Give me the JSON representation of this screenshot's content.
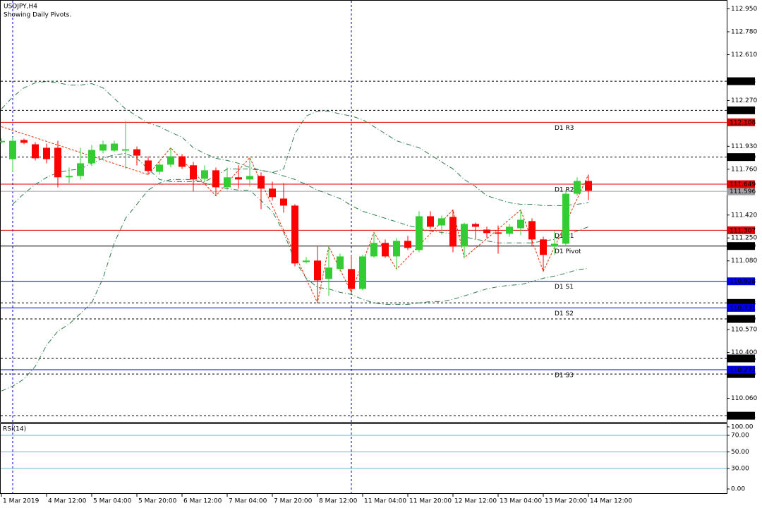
{
  "header": {
    "symbol": "USDJPY,H4",
    "note": "Showing Daily Pivots."
  },
  "chart_data": {
    "type": "candlestick",
    "categories": [
      "1 Mar 2019",
      null,
      null,
      null,
      "4 Mar 12:00",
      null,
      null,
      null,
      "5 Mar 04:00",
      null,
      null,
      null,
      "5 Mar 20:00",
      null,
      null,
      null,
      "6 Mar 12:00",
      null,
      null,
      null,
      "7 Mar 04:00",
      null,
      null,
      null,
      "7 Mar 20:00",
      null,
      null,
      null,
      "8 Mar 12:00",
      null,
      null,
      null,
      "11 Mar 04:00",
      null,
      null,
      null,
      "11 Mar 20:00",
      null,
      null,
      null,
      "12 Mar 12:00",
      null,
      null,
      null,
      "13 Mar 04:00",
      null,
      null,
      null,
      "13 Mar 20:00",
      null,
      null,
      null,
      "14 Mar 12:00"
    ],
    "open": [
      111.96,
      111.835,
      111.977,
      111.945,
      111.919,
      111.919,
      111.7,
      111.71,
      111.804,
      111.898,
      111.898,
      111.898,
      111.908,
      111.825,
      111.741,
      111.794,
      111.856,
      111.789,
      111.689,
      111.752,
      111.626,
      111.7,
      111.684,
      111.71,
      111.616,
      111.542,
      111.49,
      111.071,
      111.082,
      110.946,
      111.019,
      111.019,
      110.872,
      111.113,
      111.213,
      111.113,
      111.228,
      111.16,
      111.411,
      111.343,
      111.406,
      111.186,
      111.354,
      111.312,
      111.291,
      111.281,
      111.322,
      111.375,
      111.239,
      111.186,
      111.207,
      111.578,
      111.673
    ],
    "high": [
      111.99,
      111.998,
      111.987,
      111.961,
      111.95,
      111.971,
      111.773,
      111.919,
      111.94,
      111.971,
      111.971,
      112.118,
      111.929,
      111.856,
      111.825,
      111.919,
      111.872,
      111.814,
      111.789,
      111.773,
      111.773,
      111.789,
      111.846,
      111.736,
      111.668,
      111.657,
      111.5,
      111.108,
      111.186,
      111.186,
      111.134,
      111.124,
      111.124,
      111.291,
      111.239,
      111.249,
      111.265,
      111.448,
      111.448,
      111.416,
      111.458,
      111.364,
      111.364,
      111.333,
      111.343,
      111.354,
      111.458,
      111.396,
      111.26,
      111.301,
      111.605,
      111.7,
      111.72
    ],
    "low": [
      111.95,
      111.741,
      111.945,
      111.825,
      111.804,
      111.626,
      111.657,
      111.684,
      111.783,
      111.877,
      111.888,
      111.762,
      111.788,
      111.72,
      111.72,
      111.773,
      111.762,
      111.595,
      111.668,
      111.563,
      111.605,
      111.616,
      111.631,
      111.464,
      111.527,
      111.438,
      111.04,
      111.061,
      110.768,
      110.82,
      111.003,
      110.846,
      110.861,
      111.103,
      111.103,
      111.019,
      111.16,
      111.144,
      111.317,
      111.275,
      111.144,
      111.103,
      111.239,
      111.249,
      111.134,
      111.26,
      111.27,
      111.186,
      111.003,
      111.124,
      111.186,
      111.563,
      111.532
    ],
    "close": [
      111.97,
      111.971,
      111.956,
      111.841,
      111.835,
      111.7,
      111.71,
      111.804,
      111.903,
      111.945,
      111.95,
      111.908,
      111.861,
      111.747,
      111.794,
      111.856,
      111.778,
      111.684,
      111.752,
      111.626,
      111.7,
      111.684,
      111.71,
      111.616,
      111.553,
      111.49,
      111.061,
      111.082,
      110.935,
      111.03,
      111.113,
      110.872,
      111.113,
      111.213,
      111.113,
      111.228,
      111.176,
      111.411,
      111.333,
      111.396,
      111.186,
      111.354,
      111.333,
      111.286,
      111.281,
      111.333,
      111.385,
      111.239,
      111.124,
      111.207,
      111.578,
      111.673,
      111.6
    ],
    "up_color": "#32cd32",
    "down_color": "#ff0000",
    "ylim": [
      109.89,
      113.0
    ],
    "yticks": [
      {
        "value": 112.95,
        "label": "112.950"
      },
      {
        "value": 112.78,
        "label": "112.780"
      },
      {
        "value": 112.61,
        "label": "112.610"
      },
      {
        "value": 112.27,
        "label": "112.270"
      },
      {
        "value": 111.93,
        "label": "111.930"
      },
      {
        "value": 111.76,
        "label": "111.760"
      },
      {
        "value": 111.42,
        "label": "111.420"
      },
      {
        "value": 111.25,
        "label": "111.250"
      },
      {
        "value": 111.08,
        "label": "111.080"
      },
      {
        "value": 110.57,
        "label": "110.570"
      },
      {
        "value": 110.4,
        "label": "110.400"
      },
      {
        "value": 110.06,
        "label": "110.060"
      }
    ],
    "levels": [
      {
        "value": 112.413,
        "label": "112.413",
        "color": "#000000",
        "dashed": true
      },
      {
        "value": 112.197,
        "label": "112.197",
        "color": "#000000",
        "dashed": true
      },
      {
        "value": 111.85,
        "label": "111.850",
        "color": "#000000",
        "dashed": true
      },
      {
        "value": 110.768,
        "label": "110.768",
        "color": "#000000",
        "dashed": true
      },
      {
        "value": 110.649,
        "label": "110.649",
        "color": "#000000",
        "dashed": true
      },
      {
        "value": 110.356,
        "label": "110.356",
        "color": "#000000",
        "dashed": true
      },
      {
        "value": 110.24,
        "label": "110.240",
        "color": "#000000",
        "dashed": true
      },
      {
        "value": 109.931,
        "label": "109.931",
        "color": "#000000",
        "dashed": true
      },
      {
        "value": 111.596,
        "label": "111.596",
        "color": "#a0a0a4",
        "dashed": false
      },
      {
        "value": 112.108,
        "label": "112.108",
        "color": "#e00000",
        "dashed": false,
        "name": "D1 R3"
      },
      {
        "value": 111.649,
        "label": "111.649",
        "color": "#e00000",
        "dashed": false,
        "name": "D1 R2"
      },
      {
        "value": 111.307,
        "label": "111.307",
        "color": "#e00000",
        "dashed": false,
        "name": "D1 R1"
      },
      {
        "value": 111.19,
        "label": "111.190",
        "color": "#000000",
        "dashed": false,
        "name": "D1 Pivot"
      },
      {
        "value": 110.928,
        "label": "110.928",
        "color": "#0000e0",
        "dashed": false,
        "name": "D1 S1"
      },
      {
        "value": 110.731,
        "label": "110.731",
        "color": "#0000e0",
        "dashed": false,
        "name": "D1 S2"
      },
      {
        "value": 110.272,
        "label": "110.272",
        "color": "#0000e0",
        "dashed": false,
        "name": "D1 S3"
      }
    ],
    "bands": [
      {
        "color": "#2e7d4f",
        "values": [
          112.207,
          112.296,
          112.364,
          112.401,
          112.411,
          112.401,
          112.385,
          112.385,
          112.395,
          112.364,
          112.285,
          112.207,
          112.155,
          112.102,
          112.076,
          112.034,
          111.998,
          111.919,
          111.877,
          111.841,
          111.825,
          111.804,
          111.773,
          111.752,
          111.736,
          111.762,
          112.024,
          112.155,
          112.191,
          112.191,
          112.17,
          112.155,
          112.128,
          112.076,
          112.024,
          111.971,
          111.945,
          111.919,
          111.867,
          111.814,
          111.762,
          111.684,
          111.631,
          111.563,
          111.537,
          111.511,
          111.5,
          111.5,
          111.49,
          111.49,
          111.49,
          111.5,
          111.511
        ]
      },
      {
        "color": "#2e7d4f",
        "values": [
          null,
          111.5,
          111.579,
          111.647,
          111.699,
          111.736,
          111.752,
          111.762,
          111.804,
          111.841,
          111.867,
          111.877,
          111.841,
          111.762,
          111.684,
          111.668,
          111.668,
          111.668,
          111.668,
          111.71,
          111.762,
          111.762,
          111.762,
          111.752,
          111.736,
          111.71,
          111.684,
          111.647,
          111.605,
          111.574,
          111.542,
          111.49,
          111.448,
          111.422,
          111.396,
          111.37,
          111.343,
          111.323,
          111.302,
          111.291,
          111.281,
          111.26,
          111.239,
          111.228,
          111.213,
          111.213,
          111.213,
          111.213,
          111.228,
          111.239,
          111.265,
          111.302,
          111.333
        ]
      },
      {
        "color": "#2e7d4f",
        "values": [
          110.114,
          110.15,
          110.203,
          110.297,
          110.454,
          110.558,
          110.611,
          110.689,
          110.768,
          110.951,
          111.213,
          111.396,
          111.5,
          111.605,
          111.657,
          111.684,
          111.684,
          111.684,
          111.657,
          111.631,
          111.616,
          111.605,
          111.605,
          111.527,
          111.448,
          111.291,
          111.082,
          110.951,
          110.883,
          110.872,
          110.846,
          110.831,
          110.794,
          110.768,
          110.757,
          110.757,
          110.757,
          110.768,
          110.778,
          110.778,
          110.794,
          110.82,
          110.846,
          110.872,
          110.888,
          110.899,
          110.904,
          110.925,
          110.951,
          110.967,
          110.988,
          111.014,
          111.024
        ]
      }
    ],
    "zigzag": {
      "color": "#e03000",
      "x": [
        0,
        13,
        15,
        19,
        22,
        28,
        29,
        31,
        33,
        35,
        40,
        41,
        46,
        48,
        52
      ],
      "values": [
        112.076,
        111.72,
        111.919,
        111.563,
        111.846,
        110.768,
        111.186,
        110.846,
        111.291,
        111.019,
        111.458,
        111.103,
        111.458,
        111.003,
        111.72
      ]
    },
    "rsi": {
      "title": "RSI(14)",
      "ylim": [
        -0.6,
        83.6
      ],
      "yticks": [
        {
          "value": 100,
          "label": "100.00"
        },
        {
          "value": 70,
          "label": "70.00"
        },
        {
          "value": 50,
          "label": "50.00"
        },
        {
          "value": 30,
          "label": "30.00"
        },
        {
          "value": 0,
          "label": "0.00"
        }
      ],
      "levels": [
        70,
        50,
        30
      ],
      "color": "#5cb8d0"
    }
  }
}
